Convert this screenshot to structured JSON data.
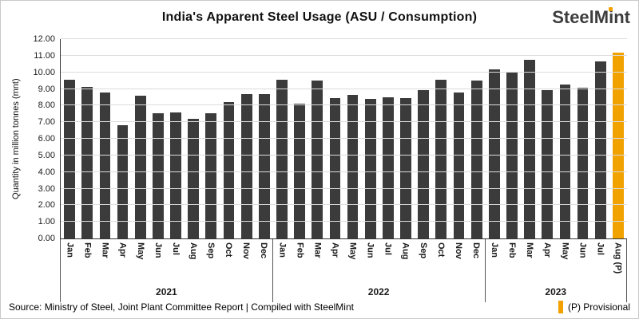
{
  "header": {
    "title": "India's Apparent Steel Usage (ASU / Consumption)",
    "logo": {
      "part1": "SteelM",
      "i": "i",
      "part2": "nt"
    }
  },
  "chart_data": {
    "type": "bar",
    "title": "India's Apparent Steel Usage (ASU / Consumption)",
    "ylabel": "Quantity in million tonnes (mnt)",
    "ylim": [
      0,
      12
    ],
    "ytick_step": 1,
    "grid": true,
    "bar_color": "#3b3b3b",
    "provisional_color": "#F2A200",
    "groups": [
      {
        "year": "2021",
        "months": [
          "Jan",
          "Feb",
          "Mar",
          "Apr",
          "May",
          "Jun",
          "Jul",
          "Aug",
          "Sep",
          "Oct",
          "Nov",
          "Dec"
        ],
        "values": [
          9.55,
          9.1,
          8.8,
          6.8,
          8.6,
          7.55,
          7.6,
          7.2,
          7.55,
          8.2,
          8.7,
          8.7
        ]
      },
      {
        "year": "2022",
        "months": [
          "Jan",
          "Feb",
          "Mar",
          "Apr",
          "May",
          "Jun",
          "Jul",
          "Aug",
          "Sep",
          "Oct",
          "Nov",
          "Dec"
        ],
        "values": [
          9.55,
          8.1,
          9.5,
          8.45,
          8.65,
          8.4,
          8.5,
          8.45,
          8.95,
          9.55,
          8.8,
          9.5
        ]
      },
      {
        "year": "2023",
        "months": [
          "Jan",
          "Feb",
          "Mar",
          "Apr",
          "May",
          "Jun",
          "Jul",
          "Aug (P)"
        ],
        "values": [
          10.2,
          10.05,
          10.75,
          8.95,
          9.25,
          9.05,
          10.65,
          11.2
        ]
      }
    ]
  },
  "footer": {
    "source": "Source: Ministry of Steel, Joint Plant Committee Report | Compiled with SteelMint",
    "legend_label": "(P) Provisional"
  }
}
